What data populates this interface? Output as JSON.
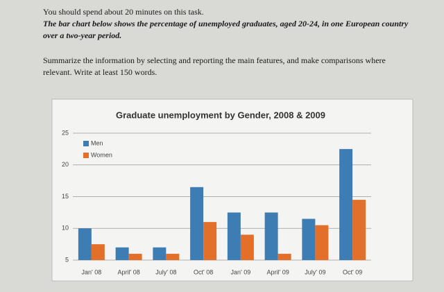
{
  "instructions": [
    "You should spend about 20 minutes on this task.",
    "The bar chart below shows the percentage of unemployed graduates, aged 20-24, in one European country over a two-year period.",
    "Summarize the information by selecting and reporting the main features, and make comparisons where relevant. Write at least 150 words."
  ],
  "chart_data": {
    "type": "bar",
    "title": "Graduate unemployment by Gender, 2008 & 2009",
    "categories": [
      "Jan' 08",
      "April' 08",
      "July' 08",
      "Oct' 08",
      "Jan' 09",
      "April' 09",
      "July' 09",
      "Oct' 09"
    ],
    "series": [
      {
        "name": "Men",
        "color": "#3d7db4",
        "values": [
          10,
          7,
          7,
          16.5,
          12.5,
          12.5,
          11.5,
          22.5
        ]
      },
      {
        "name": "Women",
        "color": "#e2702b",
        "values": [
          7.5,
          6,
          6,
          11,
          9,
          6,
          10.5,
          14.5
        ]
      }
    ],
    "ylim": [
      5,
      25
    ],
    "yticks": [
      5,
      10,
      15,
      20,
      25
    ],
    "grid": true,
    "legend": "top-left"
  }
}
